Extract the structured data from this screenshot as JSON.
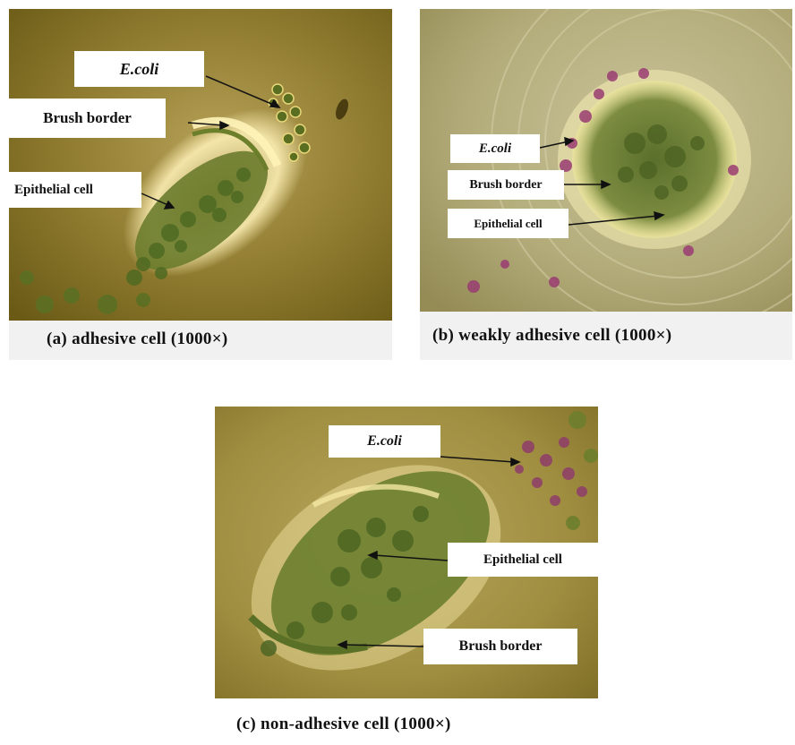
{
  "panels": {
    "a": {
      "caption": "(a) adhesive cell (1000×)",
      "labels": {
        "ecoli": "E.coli",
        "brush": "Brush border",
        "epithelial": "Epithelial cell"
      }
    },
    "b": {
      "caption": "(b) weakly adhesive cell (1000×)",
      "labels": {
        "ecoli": "E.coli",
        "brush": "Brush border",
        "epithelial": "Epithelial cell"
      }
    },
    "c": {
      "caption": "(c) non-adhesive cell (1000×)",
      "labels": {
        "ecoli": "E.coli",
        "epithelial": "Epithelial cell",
        "brush": "Brush border"
      }
    }
  },
  "colors": {
    "background_a": "#8a7a2a",
    "background_b": "#b3ad7c",
    "background_c": "#9d8c3f",
    "cell_green": "#5f7a2a",
    "bacteria_magenta": "#8a3a6a",
    "halo": "#f3e6a8"
  }
}
